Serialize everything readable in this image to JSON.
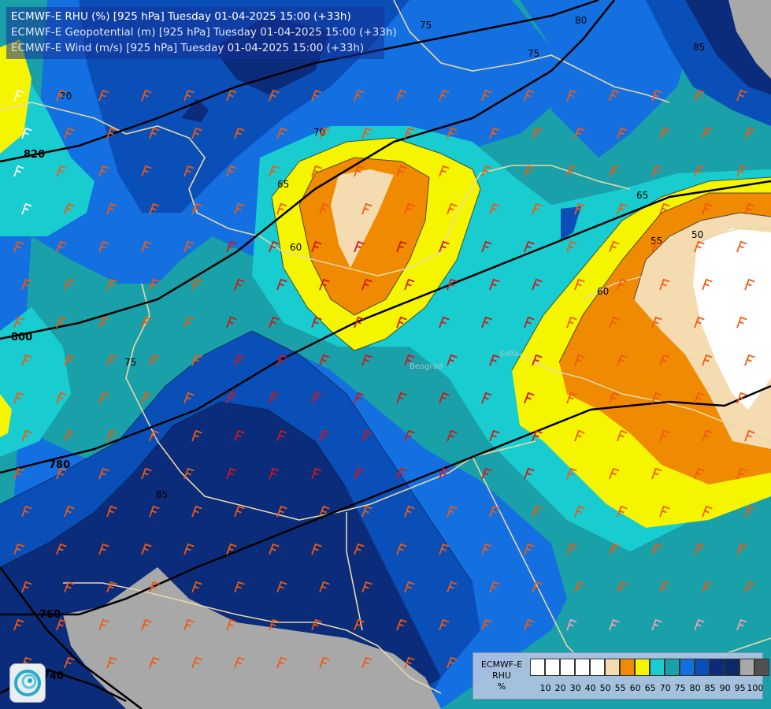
{
  "header": {
    "line1": "ECMWF-E RHU (%) [925 hPa] Tuesday 01-04-2025 15:00 (+33h)",
    "line2": "ECMWF-E Geopotential (m) [925 hPa] Tuesday 01-04-2025 15:00 (+33h)",
    "line3": "ECMWF-E Wind (m/s) [925 hPa] Tuesday 01-04-2025 15:00 (+33h)"
  },
  "legend": {
    "title_line1": "ECMWF-E",
    "title_line2": "RHU",
    "unit": "%",
    "ticks": [
      "10",
      "20",
      "30",
      "40",
      "50",
      "55",
      "60",
      "65",
      "70",
      "75",
      "80",
      "85",
      "90",
      "95",
      "100"
    ],
    "colors": [
      "#ffffff",
      "#ffffff",
      "#ffffff",
      "#ffffff",
      "#ffffff",
      "#f5dcb0",
      "#f08a00",
      "#f5f500",
      "#18ccd0",
      "#1aa0a8",
      "#1470e0",
      "#0a4fb8",
      "#0a2c7a",
      "#0a2a6a",
      "#a8a8a8",
      "#505050"
    ]
  },
  "map_labels": {
    "rhu_contours": [
      "75",
      "80",
      "85",
      "75",
      "70",
      "65",
      "60",
      "50",
      "55",
      "65",
      "60",
      "75",
      "85",
      "70"
    ],
    "geopotential_contours": [
      "820",
      "800",
      "780",
      "760",
      "740"
    ],
    "place_labels": [
      "Beograd",
      "Sofia"
    ]
  },
  "colors": {
    "white": "#ffffff",
    "beige": "#f5dcb0",
    "orange": "#f08a00",
    "yellow": "#f5f500",
    "cyan": "#18ccd0",
    "teal": "#1aa0a8",
    "blue": "#1470e0",
    "darkblue": "#0a4fb8",
    "navy": "#0a2c7a",
    "gray": "#a8a8a8",
    "borders": "#e8d8a8",
    "barbs_orange": "#f05a10",
    "barbs_red": "#d01818",
    "barbs_pink": "#f0a0c0"
  }
}
